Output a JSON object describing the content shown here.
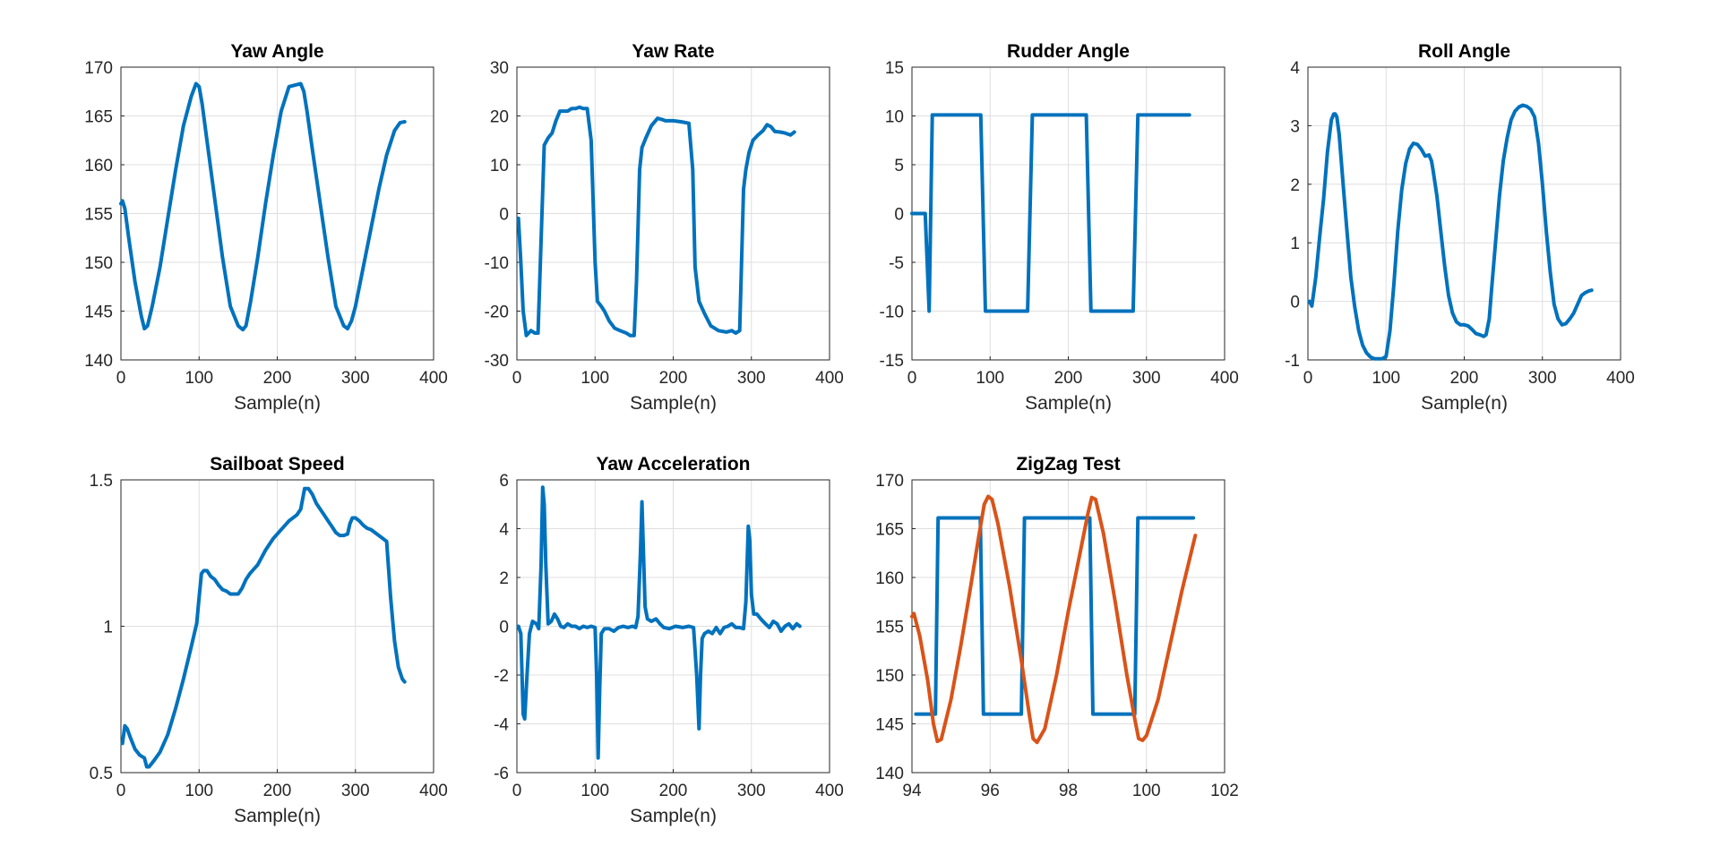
{
  "chart_data": [
    {
      "type": "line",
      "title": "Yaw Angle",
      "xlabel": "Sample(n)",
      "ylabel": "",
      "xlim": [
        0,
        400
      ],
      "ylim": [
        140,
        170
      ],
      "xticks": [
        "0",
        "100",
        "200",
        "300",
        "400"
      ],
      "yticks": [
        "140",
        "145",
        "150",
        "155",
        "160",
        "165",
        "170"
      ],
      "grid": true,
      "series": [
        {
          "color": "#0072BD",
          "x": [
            0,
            2,
            5,
            10,
            18,
            26,
            30,
            34,
            40,
            50,
            60,
            70,
            80,
            90,
            96,
            100,
            104,
            110,
            120,
            130,
            140,
            150,
            156,
            160,
            166,
            175,
            185,
            195,
            205,
            215,
            225,
            230,
            234,
            238,
            245,
            255,
            265,
            275,
            285,
            290,
            295,
            300,
            310,
            320,
            330,
            340,
            350,
            357,
            363
          ],
          "y": [
            156,
            156.3,
            155.5,
            152.5,
            148,
            144.5,
            143.2,
            143.5,
            145.5,
            149.5,
            154.5,
            159.5,
            164,
            167,
            168.3,
            168,
            166.2,
            162.5,
            156.5,
            150.5,
            145.5,
            143.5,
            143.1,
            143.5,
            146,
            150.5,
            156,
            161,
            165.5,
            168,
            168.2,
            168.3,
            167.5,
            165.5,
            161.5,
            156,
            150.5,
            145.5,
            143.5,
            143.2,
            144,
            145.5,
            149.5,
            153.5,
            157.5,
            161,
            163.5,
            164.3,
            164.4
          ]
        }
      ]
    },
    {
      "type": "line",
      "title": "Yaw Rate",
      "xlabel": "Sample(n)",
      "ylabel": "",
      "xlim": [
        0,
        400
      ],
      "ylim": [
        -30,
        30
      ],
      "xticks": [
        "0",
        "100",
        "200",
        "300",
        "400"
      ],
      "yticks": [
        "-30",
        "-20",
        "-10",
        "0",
        "10",
        "20",
        "30"
      ],
      "grid": true,
      "series": [
        {
          "color": "#0072BD",
          "x": [
            2,
            5,
            8,
            12,
            18,
            23,
            27,
            30,
            35,
            40,
            45,
            50,
            55,
            60,
            65,
            70,
            75,
            80,
            85,
            90,
            95,
            100,
            103,
            108,
            112,
            118,
            125,
            132,
            140,
            145,
            150,
            153,
            157,
            160,
            165,
            172,
            180,
            185,
            190,
            200,
            210,
            220,
            225,
            228,
            233,
            240,
            248,
            258,
            268,
            275,
            280,
            285,
            290,
            293,
            297,
            302,
            308,
            315,
            320,
            325,
            330,
            337,
            343,
            350,
            355
          ],
          "y": [
            -1,
            -10,
            -20,
            -25,
            -24,
            -24.5,
            -24.5,
            -10,
            14,
            15.5,
            16.5,
            19,
            21,
            21,
            21,
            21.5,
            21.5,
            21.8,
            21.5,
            21.5,
            15,
            -10,
            -18,
            -19,
            -20,
            -22,
            -23.5,
            -24,
            -24.5,
            -25,
            -25,
            -14,
            9,
            13.5,
            15.5,
            18,
            19.5,
            19.3,
            19,
            19,
            18.8,
            18.5,
            9,
            -11,
            -18,
            -20.5,
            -23,
            -24,
            -24.3,
            -24,
            -24.5,
            -24,
            5,
            9,
            12.5,
            15,
            16,
            17,
            18.2,
            17.8,
            16.8,
            16.7,
            16.5,
            16.1,
            16.7
          ]
        }
      ]
    },
    {
      "type": "line",
      "title": "Rudder Angle",
      "xlabel": "Sample(n)",
      "ylabel": "",
      "xlim": [
        0,
        400
      ],
      "ylim": [
        -15,
        15
      ],
      "xticks": [
        "0",
        "100",
        "200",
        "300",
        "400"
      ],
      "yticks": [
        "-15",
        "-10",
        "-5",
        "0",
        "5",
        "10",
        "15"
      ],
      "grid": true,
      "series": [
        {
          "color": "#0072BD",
          "x": [
            0,
            10,
            17,
            22,
            26,
            88,
            94,
            148,
            154,
            223,
            229,
            283,
            289,
            355
          ],
          "y": [
            0,
            0,
            0,
            -10,
            10.1,
            10.1,
            -10,
            -10,
            10.1,
            10.1,
            -10,
            -10,
            10.1,
            10.1
          ]
        }
      ]
    },
    {
      "type": "line",
      "title": "Roll Angle",
      "xlabel": "Sample(n)",
      "ylabel": "",
      "xlim": [
        0,
        400
      ],
      "ylim": [
        -1,
        4
      ],
      "xticks": [
        "0",
        "100",
        "200",
        "300",
        "400"
      ],
      "yticks": [
        "-1",
        "0",
        "1",
        "2",
        "3",
        "4"
      ],
      "grid": true,
      "series": [
        {
          "color": "#0072BD",
          "x": [
            2,
            5,
            10,
            15,
            20,
            25,
            30,
            33,
            35,
            37,
            40,
            45,
            50,
            55,
            60,
            65,
            70,
            75,
            80,
            85,
            90,
            95,
            100,
            105,
            110,
            115,
            120,
            125,
            130,
            135,
            140,
            145,
            150,
            155,
            158,
            160,
            165,
            170,
            175,
            180,
            185,
            190,
            195,
            200,
            205,
            210,
            215,
            220,
            225,
            228,
            232,
            235,
            240,
            245,
            250,
            255,
            260,
            265,
            270,
            275,
            280,
            285,
            290,
            295,
            300,
            305,
            310,
            315,
            320,
            325,
            330,
            335,
            340,
            345,
            350,
            355,
            360,
            363
          ],
          "y": [
            0,
            -0.08,
            0.4,
            1.1,
            1.75,
            2.55,
            3.1,
            3.2,
            3.2,
            3.15,
            2.85,
            2.0,
            1.2,
            0.4,
            -0.1,
            -0.5,
            -0.75,
            -0.88,
            -0.95,
            -0.98,
            -0.98,
            -0.98,
            -0.94,
            -0.5,
            0.3,
            1.2,
            1.9,
            2.35,
            2.6,
            2.7,
            2.68,
            2.6,
            2.48,
            2.5,
            2.4,
            2.25,
            1.8,
            1.2,
            0.6,
            0.1,
            -0.2,
            -0.35,
            -0.4,
            -0.4,
            -0.42,
            -0.48,
            -0.55,
            -0.57,
            -0.6,
            -0.57,
            -0.3,
            0.2,
            1.0,
            1.8,
            2.4,
            2.8,
            3.1,
            3.25,
            3.32,
            3.35,
            3.33,
            3.28,
            3.15,
            2.7,
            2.0,
            1.2,
            0.5,
            -0.05,
            -0.3,
            -0.4,
            -0.38,
            -0.3,
            -0.2,
            -0.05,
            0.1,
            0.15,
            0.18,
            0.19
          ]
        }
      ]
    },
    {
      "type": "line",
      "title": "Sailboat Speed",
      "xlabel": "Sample(n)",
      "ylabel": "",
      "xlim": [
        0,
        400
      ],
      "ylim": [
        0.5,
        1.5
      ],
      "xticks": [
        "0",
        "100",
        "200",
        "300",
        "400"
      ],
      "yticks": [
        "0.5",
        "1",
        "1.5"
      ],
      "grid": true,
      "series": [
        {
          "color": "#0072BD",
          "x": [
            2,
            5,
            8,
            12,
            18,
            24,
            30,
            33,
            36,
            42,
            50,
            60,
            70,
            80,
            90,
            97,
            100,
            103,
            106,
            110,
            115,
            120,
            125,
            130,
            135,
            140,
            145,
            150,
            155,
            160,
            165,
            175,
            185,
            195,
            205,
            215,
            225,
            230,
            235,
            240,
            245,
            250,
            255,
            260,
            265,
            270,
            275,
            280,
            285,
            290,
            293,
            296,
            300,
            305,
            310,
            315,
            320,
            330,
            340,
            345,
            350,
            355,
            360,
            363
          ],
          "y": [
            0.6,
            0.66,
            0.65,
            0.62,
            0.58,
            0.56,
            0.55,
            0.52,
            0.52,
            0.54,
            0.57,
            0.63,
            0.72,
            0.82,
            0.93,
            1.01,
            1.1,
            1.18,
            1.19,
            1.19,
            1.17,
            1.16,
            1.14,
            1.125,
            1.12,
            1.11,
            1.11,
            1.11,
            1.13,
            1.16,
            1.18,
            1.21,
            1.26,
            1.3,
            1.33,
            1.36,
            1.38,
            1.4,
            1.47,
            1.47,
            1.45,
            1.42,
            1.4,
            1.38,
            1.36,
            1.34,
            1.32,
            1.31,
            1.31,
            1.315,
            1.35,
            1.37,
            1.37,
            1.36,
            1.345,
            1.335,
            1.33,
            1.31,
            1.29,
            1.1,
            0.95,
            0.86,
            0.82,
            0.81
          ]
        }
      ]
    },
    {
      "type": "line",
      "title": "Yaw Acceleration",
      "xlabel": "Sample(n)",
      "ylabel": "",
      "xlim": [
        0,
        400
      ],
      "ylim": [
        -6,
        6
      ],
      "xticks": [
        "0",
        "100",
        "200",
        "300",
        "400"
      ],
      "yticks": [
        "-6",
        "-4",
        "-2",
        "0",
        "2",
        "4",
        "6"
      ],
      "grid": true,
      "series": [
        {
          "color": "#0072BD",
          "x": [
            2,
            5,
            8,
            10,
            13,
            16,
            20,
            25,
            28,
            31,
            33,
            35,
            37,
            40,
            44,
            48,
            52,
            56,
            60,
            65,
            70,
            75,
            80,
            85,
            90,
            95,
            100,
            102,
            104,
            106,
            108,
            112,
            118,
            124,
            130,
            136,
            142,
            148,
            152,
            155,
            158,
            160,
            162,
            164,
            167,
            172,
            178,
            183,
            188,
            195,
            203,
            212,
            220,
            226,
            230,
            233,
            235,
            237,
            240,
            245,
            250,
            255,
            260,
            265,
            270,
            275,
            280,
            285,
            290,
            293,
            296,
            298,
            300,
            303,
            307,
            312,
            318,
            323,
            328,
            333,
            338,
            343,
            348,
            353,
            358,
            362
          ],
          "y": [
            0,
            -0.3,
            -3.6,
            -3.8,
            -2.0,
            -0.3,
            0.2,
            0.1,
            -0.1,
            2.5,
            5.7,
            5.0,
            2.5,
            0.1,
            0.2,
            0.5,
            0.3,
            0.0,
            -0.05,
            0.1,
            0.0,
            0.0,
            -0.1,
            0.0,
            -0.05,
            0.0,
            -0.05,
            -2.0,
            -5.4,
            -2.5,
            -0.3,
            -0.1,
            -0.1,
            -0.2,
            -0.05,
            0.0,
            -0.05,
            0.0,
            -0.05,
            0.4,
            3.0,
            5.1,
            3.0,
            0.8,
            0.3,
            0.2,
            0.3,
            0.1,
            -0.05,
            -0.1,
            0.0,
            -0.05,
            0.0,
            -0.05,
            -2.0,
            -4.2,
            -2.0,
            -0.5,
            -0.3,
            -0.2,
            -0.3,
            -0.05,
            -0.3,
            -0.05,
            0.0,
            0.1,
            -0.05,
            -0.05,
            -0.1,
            1.0,
            4.1,
            3.5,
            1.3,
            0.5,
            0.5,
            0.3,
            0.1,
            -0.05,
            0.2,
            0.1,
            -0.2,
            0.0,
            0.1,
            -0.1,
            0.1,
            0.0
          ]
        }
      ]
    },
    {
      "type": "line",
      "title": "ZigZag Test",
      "xlabel": "",
      "ylabel": "",
      "xlim": [
        94,
        102
      ],
      "ylim": [
        140,
        170
      ],
      "xticks": [
        "94",
        "96",
        "98",
        "100",
        "102"
      ],
      "yticks": [
        "140",
        "145",
        "150",
        "155",
        "160",
        "165",
        "170"
      ],
      "grid": true,
      "series": [
        {
          "color": "#0072BD",
          "x": [
            94.1,
            94.5,
            94.55,
            94.6,
            94.67,
            95.75,
            95.83,
            96.8,
            96.88,
            98.55,
            98.63,
            99.7,
            99.78,
            101.2
          ],
          "y": [
            146,
            146,
            146,
            146,
            166.1,
            166.1,
            146,
            146,
            166.1,
            166.1,
            146,
            146,
            166.1,
            166.1
          ]
        },
        {
          "color": "#D95319",
          "x": [
            94,
            94.05,
            94.2,
            94.4,
            94.55,
            94.65,
            94.75,
            95.0,
            95.25,
            95.5,
            95.7,
            95.85,
            95.95,
            96.05,
            96.2,
            96.5,
            96.8,
            97.0,
            97.1,
            97.2,
            97.4,
            97.7,
            98.0,
            98.3,
            98.5,
            98.6,
            98.7,
            98.9,
            99.2,
            99.5,
            99.7,
            99.8,
            99.9,
            100.0,
            100.3,
            100.6,
            100.9,
            101.25
          ],
          "y": [
            156,
            156.3,
            154,
            149.5,
            145,
            143.2,
            143.4,
            147.5,
            153,
            159,
            164,
            167.5,
            168.3,
            168,
            165.5,
            159,
            151.5,
            146,
            143.5,
            143.1,
            144.5,
            150,
            156.5,
            162.5,
            166.5,
            168.2,
            168,
            164.5,
            157.5,
            150,
            145.5,
            143.5,
            143.3,
            143.8,
            147.5,
            153,
            158.5,
            164.3
          ]
        }
      ]
    }
  ]
}
